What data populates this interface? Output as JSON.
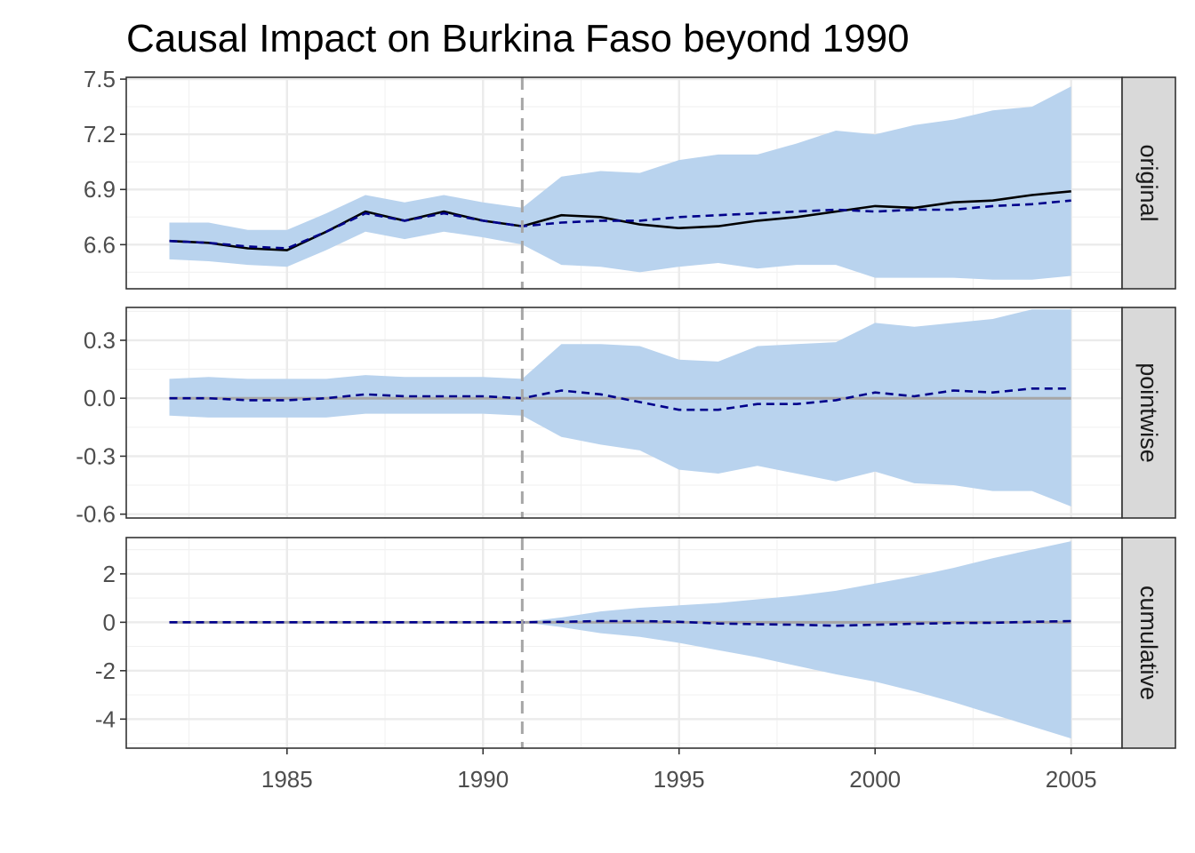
{
  "chart_data": {
    "type": "line",
    "title": "Causal Impact on Burkina Faso beyond 1990",
    "xlabel": "",
    "ylabel": "",
    "x": [
      1982,
      1983,
      1984,
      1985,
      1986,
      1987,
      1988,
      1989,
      1990,
      1991,
      1992,
      1993,
      1994,
      1995,
      1996,
      1997,
      1998,
      1999,
      2000,
      2001,
      2002,
      2003,
      2004,
      2005
    ],
    "x_ticks": [
      "1985",
      "1990",
      "1995",
      "2000",
      "2005"
    ],
    "xlim": [
      1980.9,
      2006.3
    ],
    "intervention": 1991,
    "grid": true,
    "colors": {
      "band": "#b9d3ee",
      "predicted": "#00008b",
      "actual": "#000000",
      "zero": "#a6a6a6",
      "intervention": "#a6a6a6",
      "strip": "#d9d9d9"
    },
    "panels": [
      {
        "name": "original",
        "ylim": [
          6.36,
          7.51
        ],
        "y_ticks": [
          "7.5",
          "7.2",
          "6.9",
          "6.6"
        ],
        "y_tick_values": [
          7.5,
          7.2,
          6.9,
          6.6
        ],
        "actual": [
          6.62,
          6.61,
          6.58,
          6.57,
          6.67,
          6.78,
          6.73,
          6.78,
          6.73,
          6.7,
          6.76,
          6.75,
          6.71,
          6.69,
          6.7,
          6.73,
          6.75,
          6.78,
          6.81,
          6.8,
          6.83,
          6.84,
          6.87,
          6.89
        ],
        "predicted": [
          6.62,
          6.61,
          6.59,
          6.58,
          6.67,
          6.77,
          6.73,
          6.77,
          6.73,
          6.7,
          6.72,
          6.73,
          6.73,
          6.75,
          6.76,
          6.77,
          6.78,
          6.79,
          6.78,
          6.79,
          6.79,
          6.81,
          6.82,
          6.84
        ],
        "lower": [
          6.52,
          6.51,
          6.49,
          6.48,
          6.57,
          6.67,
          6.63,
          6.67,
          6.64,
          6.6,
          6.49,
          6.48,
          6.45,
          6.48,
          6.5,
          6.47,
          6.49,
          6.49,
          6.42,
          6.42,
          6.42,
          6.41,
          6.41,
          6.43
        ],
        "upper": [
          6.72,
          6.72,
          6.68,
          6.68,
          6.77,
          6.87,
          6.83,
          6.87,
          6.83,
          6.8,
          6.97,
          7.0,
          6.99,
          7.06,
          7.09,
          7.09,
          7.15,
          7.22,
          7.2,
          7.25,
          7.28,
          7.33,
          7.35,
          7.46
        ]
      },
      {
        "name": "pointwise",
        "ylim": [
          -0.62,
          0.47
        ],
        "y_ticks": [
          "0.3",
          "0.0",
          "-0.3",
          "-0.6"
        ],
        "y_tick_values": [
          0.3,
          0.0,
          -0.3,
          -0.6
        ],
        "predicted": [
          0.0,
          0.0,
          -0.01,
          -0.01,
          0.0,
          0.02,
          0.01,
          0.01,
          0.01,
          0.0,
          0.04,
          0.02,
          -0.02,
          -0.06,
          -0.06,
          -0.03,
          -0.03,
          -0.01,
          0.03,
          0.01,
          0.04,
          0.03,
          0.05,
          0.05
        ],
        "lower": [
          -0.09,
          -0.1,
          -0.1,
          -0.1,
          -0.1,
          -0.08,
          -0.08,
          -0.08,
          -0.08,
          -0.09,
          -0.2,
          -0.24,
          -0.27,
          -0.37,
          -0.39,
          -0.35,
          -0.39,
          -0.43,
          -0.38,
          -0.44,
          -0.45,
          -0.48,
          -0.48,
          -0.56
        ],
        "upper": [
          0.1,
          0.11,
          0.1,
          0.1,
          0.1,
          0.12,
          0.11,
          0.11,
          0.11,
          0.1,
          0.28,
          0.28,
          0.27,
          0.2,
          0.19,
          0.27,
          0.28,
          0.29,
          0.39,
          0.37,
          0.39,
          0.41,
          0.46,
          0.46
        ]
      },
      {
        "name": "cumulative",
        "ylim": [
          -5.2,
          3.5
        ],
        "y_ticks": [
          "2",
          "0",
          "-2",
          "-4"
        ],
        "y_tick_values": [
          2,
          0,
          -2,
          -4
        ],
        "predicted": [
          0,
          0,
          0,
          0,
          0,
          0,
          0,
          0,
          0,
          0,
          0.02,
          0.05,
          0.05,
          0.02,
          -0.05,
          -0.08,
          -0.1,
          -0.14,
          -0.1,
          -0.06,
          -0.03,
          -0.02,
          0.02,
          0.05
        ],
        "lower": [
          0,
          0,
          0,
          0,
          0,
          0,
          0,
          0,
          0,
          0,
          -0.2,
          -0.45,
          -0.6,
          -0.85,
          -1.15,
          -1.45,
          -1.8,
          -2.15,
          -2.45,
          -2.85,
          -3.3,
          -3.8,
          -4.3,
          -4.8
        ],
        "upper": [
          0,
          0,
          0,
          0,
          0,
          0,
          0,
          0,
          0,
          0,
          0.2,
          0.45,
          0.6,
          0.7,
          0.8,
          0.95,
          1.1,
          1.3,
          1.6,
          1.9,
          2.25,
          2.65,
          3.0,
          3.35
        ]
      }
    ]
  }
}
